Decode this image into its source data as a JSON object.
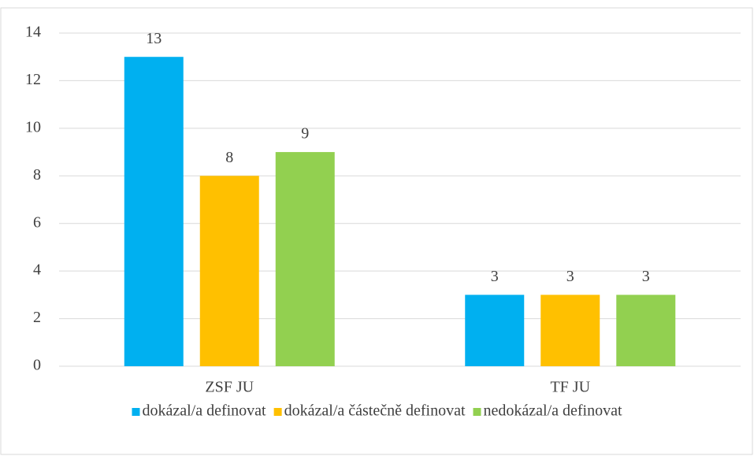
{
  "chart_data": {
    "type": "bar",
    "categories": [
      "ZSF JU",
      "TF JU"
    ],
    "series": [
      {
        "name": "dokázal/a definovat",
        "color": "#00b0f0",
        "values": [
          13,
          3
        ]
      },
      {
        "name": "dokázal/a částečně definovat",
        "color": "#ffc000",
        "values": [
          8,
          3
        ]
      },
      {
        "name": "nedokázal/a definovat",
        "color": "#92d050",
        "values": [
          9,
          3
        ]
      }
    ],
    "ylim": [
      0,
      14
    ],
    "yticks": [
      0,
      2,
      4,
      6,
      8,
      10,
      12,
      14
    ],
    "grid": true,
    "legend": "bottom",
    "data_labels": true
  }
}
